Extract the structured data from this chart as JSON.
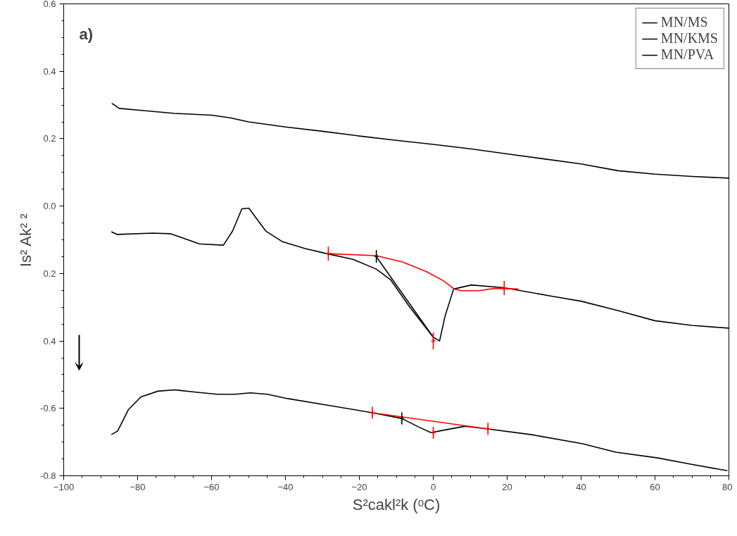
{
  "chart_data": {
    "type": "line",
    "xlabel": "S²cakl²k (ᵒC)",
    "ylabel": "Is² Ak² ²",
    "annotations": [
      "a)"
    ],
    "xlim": [
      -100,
      80
    ],
    "ylim": [
      -0.8,
      0.6
    ],
    "xticks": [
      -100,
      -80,
      -60,
      -40,
      -20,
      0,
      20,
      40,
      60,
      80
    ],
    "yticks": [
      {
        "value": -0.8,
        "label": "-0.8"
      },
      {
        "value": -0.6,
        "label": "-0.6"
      },
      {
        "value": -0.4,
        "label": "0.4"
      },
      {
        "value": -0.2,
        "label": "0.2"
      },
      {
        "value": 0,
        "label": "0.0"
      },
      0.2,
      0.4,
      0.6
    ],
    "grid": false,
    "legend": "top right",
    "line_style": "solid",
    "marker": "none",
    "series": [
      {
        "name": "MN/MS",
        "color": "#000000",
        "x": [
          -87,
          -85,
          -80,
          -70,
          -60,
          -55,
          -50,
          -40,
          -30,
          -20,
          -10,
          0,
          10,
          20,
          30,
          40,
          50,
          60,
          70,
          80
        ],
        "values": [
          0.305,
          0.29,
          0.285,
          0.275,
          0.27,
          0.262,
          0.25,
          0.235,
          0.222,
          0.208,
          0.195,
          0.183,
          0.17,
          0.155,
          0.14,
          0.125,
          0.105,
          0.095,
          0.088,
          0.083
        ]
      },
      {
        "name": "MN/KMS",
        "color": "#000000",
        "x": [
          -87.1,
          -85.6,
          -76,
          -71,
          -63.3,
          -56.8,
          -54.3,
          -51.8,
          -49.9,
          -47.2,
          -45.3,
          -40.9,
          -34.6,
          -28.8,
          -21.7,
          -15.4,
          -11.5,
          -6.4,
          0,
          1.7,
          3.2,
          5.5,
          10.3,
          19.2,
          32,
          40,
          50,
          60,
          70,
          80
        ],
        "values": [
          -0.076,
          -0.084,
          -0.08,
          -0.082,
          -0.112,
          -0.116,
          -0.074,
          -0.008,
          -0.006,
          -0.046,
          -0.074,
          -0.105,
          -0.126,
          -0.141,
          -0.158,
          -0.187,
          -0.219,
          -0.299,
          -0.389,
          -0.4,
          -0.326,
          -0.246,
          -0.234,
          -0.242,
          -0.267,
          -0.282,
          -0.31,
          -0.34,
          -0.354,
          -0.362
        ]
      },
      {
        "name": "MN/PVA",
        "color": "#000000",
        "x": [
          -87.1,
          -85.4,
          -82.5,
          -79.1,
          -74.5,
          -70,
          -64.3,
          -58.5,
          -53.6,
          -49.5,
          -44.9,
          -39.4,
          -27.8,
          -16.5,
          -8.5,
          -4,
          -0.6,
          1.7,
          8.6,
          14.8,
          26.6,
          40.4,
          49.4,
          60.7,
          69.9,
          79.6
        ],
        "values": [
          -0.678,
          -0.667,
          -0.604,
          -0.566,
          -0.549,
          -0.545,
          -0.552,
          -0.558,
          -0.558,
          -0.554,
          -0.558,
          -0.571,
          -0.592,
          -0.613,
          -0.63,
          -0.655,
          -0.672,
          -0.667,
          -0.653,
          -0.661,
          -0.678,
          -0.705,
          -0.73,
          -0.747,
          -0.766,
          -0.785
        ]
      },
      {
        "color": "#ff0000",
        "x": [
          -28.4,
          -15.4,
          -8.3,
          -1.9,
          2.7,
          5.7,
          7.6,
          12.3,
          16.7,
          23
        ],
        "values": [
          -0.141,
          -0.147,
          -0.166,
          -0.194,
          -0.221,
          -0.246,
          -0.251,
          -0.251,
          -0.244,
          -0.246
        ]
      },
      {
        "color": "#000000",
        "x": [
          -15.4,
          0
        ],
        "values": [
          -0.15,
          -0.389
        ]
      },
      {
        "color": "#ff0000",
        "x": [
          -16.5,
          14.8
        ],
        "values": [
          -0.613,
          -0.661
        ]
      },
      {
        "type": "scatter",
        "marker": "cross",
        "color": "#ff0000",
        "x": [
          -28.4,
          0,
          19.2,
          -16.5,
          0,
          14.8
        ],
        "values": [
          -0.141,
          -0.4,
          -0.243,
          -0.613,
          -0.672,
          -0.661
        ],
        "errors": [
          0.021,
          0.025,
          0.021,
          0.018,
          0.018,
          0.018
        ]
      },
      {
        "type": "scatter",
        "marker": "cross",
        "color": "#000000",
        "x": [
          -15.4,
          -8.5
        ],
        "values": [
          -0.149,
          -0.63
        ],
        "errors": [
          0.019,
          0.018
        ]
      }
    ]
  }
}
